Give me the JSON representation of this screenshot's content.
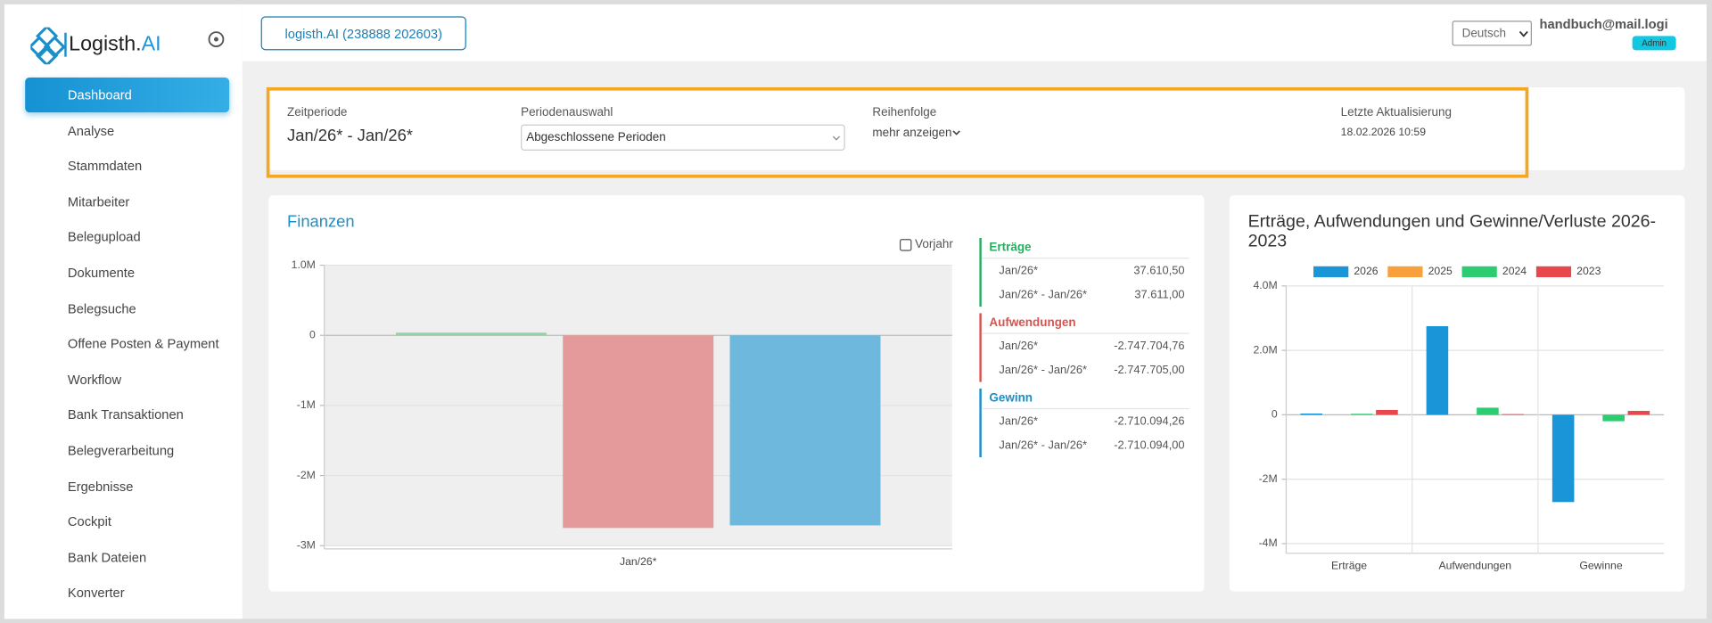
{
  "sidebar": {
    "logo": {
      "text": "Logisth.",
      "accent": "AI"
    },
    "nav": [
      {
        "label": "Dashboard",
        "active": true
      },
      {
        "label": "Analyse",
        "submenu": true
      },
      {
        "label": "Stammdaten",
        "submenu": true
      },
      {
        "label": "Mitarbeiter",
        "submenu": true
      },
      {
        "label": "Belegupload"
      },
      {
        "label": "Dokumente"
      },
      {
        "label": "Belegsuche"
      },
      {
        "label": "Offene Posten & Payment"
      },
      {
        "label": "Workflow"
      },
      {
        "label": "Bank Transaktionen"
      },
      {
        "label": "Belegverarbeitung"
      },
      {
        "label": "Ergebnisse"
      },
      {
        "label": "Cockpit"
      },
      {
        "label": "Bank Dateien"
      },
      {
        "label": "Konverter"
      }
    ]
  },
  "header": {
    "company": "logisth.AI (238888 202603)",
    "language": "Deutsch",
    "user": "handbuch@mail.logi",
    "role": "Admin"
  },
  "filters": {
    "zeitperiode": {
      "label": "Zeitperiode",
      "value": "Jan/26* - Jan/26*"
    },
    "periodenauswahl": {
      "label": "Periodenauswahl",
      "value": "Abgeschlossene Perioden"
    },
    "reihenfolge": {
      "label": "Reihenfolge",
      "value": "mehr anzeigen"
    },
    "aktualisierung": {
      "label": "Letzte Aktualisierung",
      "value": "18.02.2026 10:59"
    }
  },
  "finanzen": {
    "type": "bar",
    "title": "Finanzen",
    "checkbox": "Vorjahr",
    "categories": [
      "Jan/26*"
    ],
    "series": [
      {
        "color": "#8fd6a3",
        "values": [
          37610.5
        ]
      },
      {
        "color": "#e49a9a",
        "values": [
          -2747704.76
        ]
      },
      {
        "color": "#6db8dc",
        "values": [
          -2710094.26
        ]
      }
    ],
    "ylim": [
      -3000000,
      1000000
    ],
    "yticks": [
      {
        "value": 1000000,
        "label": "1.0M"
      },
      0,
      {
        "value": -1000000,
        "label": "-1M"
      },
      {
        "value": -2000000,
        "label": "-2M"
      },
      {
        "value": -3000000,
        "label": "-3M"
      }
    ],
    "grid": true
  },
  "summary": [
    {
      "title": "Erträge",
      "color": "#27ae60",
      "rows": [
        [
          "Jan/26*",
          "37.610,50"
        ],
        [
          "Jan/26* - Jan/26*",
          "37.611,00"
        ]
      ]
    },
    {
      "title": "Aufwendungen",
      "color": "#d9534f",
      "rows": [
        [
          "Jan/26*",
          "-2.747.704,76"
        ],
        [
          "Jan/26* - Jan/26*",
          "-2.747.705,00"
        ]
      ]
    },
    {
      "title": "Gewinn",
      "color": "#1a8fc9",
      "rows": [
        [
          "Jan/26*",
          "-2.710.094,26"
        ],
        [
          "Jan/26* - Jan/26*",
          "-2.710.094,00"
        ]
      ]
    }
  ],
  "chart2": {
    "type": "bar",
    "title": "Erträge, Aufwendungen und Gewinne/Verluste 2026-2023",
    "categories": [
      "Erträge",
      "Aufwendungen",
      "Gewinne"
    ],
    "series": [
      {
        "name": "2026",
        "color": "#1a95d8",
        "values": [
          37610,
          2750000,
          -2710000
        ]
      },
      {
        "name": "2025",
        "color": "#f7a03c",
        "values": [
          0,
          0,
          0
        ]
      },
      {
        "name": "2024",
        "color": "#2ecc71",
        "values": [
          30000,
          220000,
          -200000
        ]
      },
      {
        "name": "2023",
        "color": "#e8474c",
        "values": [
          150000,
          20000,
          120000
        ]
      }
    ],
    "ylim": [
      -4200000,
      4000000
    ],
    "yticks": [
      {
        "value": 4000000,
        "label": "4.0M"
      },
      {
        "value": 2000000,
        "label": "2.0M"
      },
      0,
      {
        "value": -2000000,
        "label": "-2M"
      },
      {
        "value": -4000000,
        "label": "-4M"
      }
    ],
    "grid": true
  }
}
